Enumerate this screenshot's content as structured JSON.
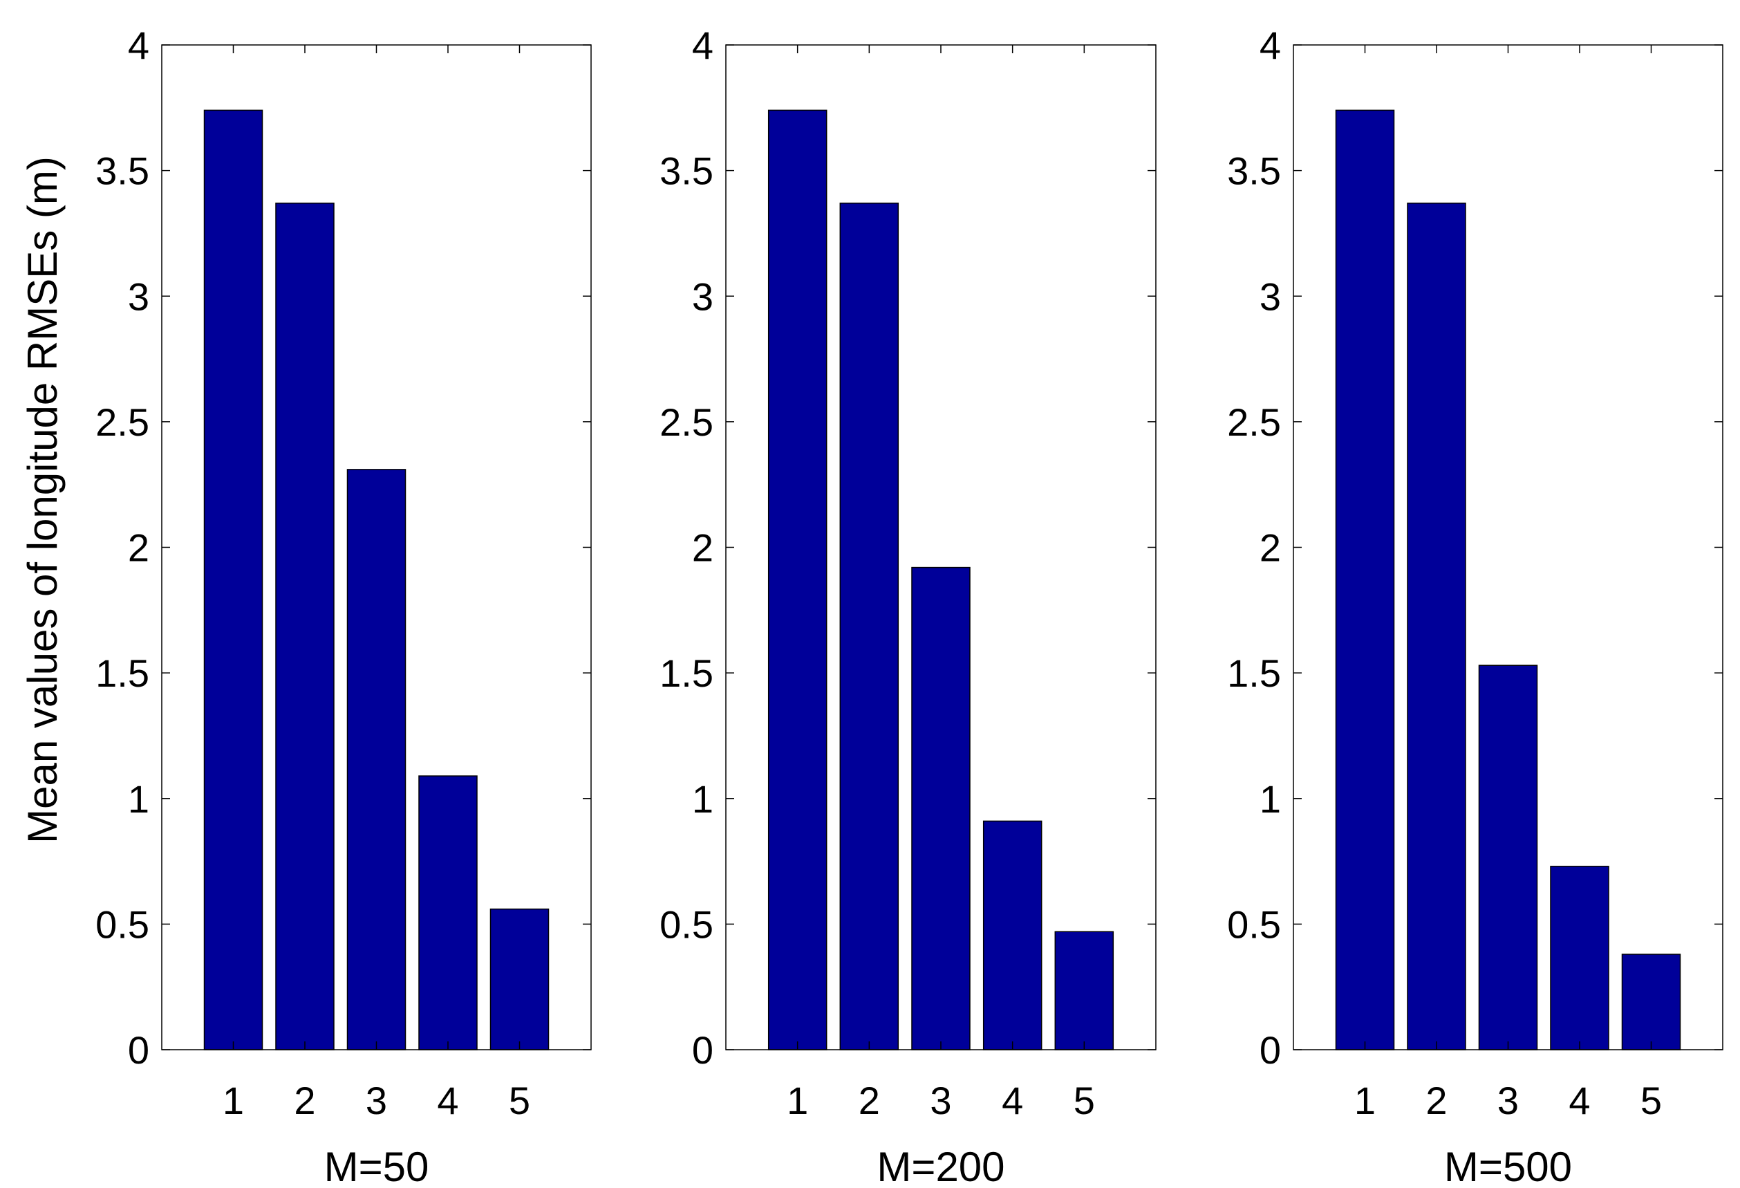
{
  "chart_data": {
    "type": "bar",
    "layout": "three side-by-side subplots sharing a y-axis label",
    "ylabel": "Mean values of longitude RMSEs (m)",
    "bar_color": "#000099",
    "panels": [
      {
        "xlabel": "M=50",
        "categories": [
          "1",
          "2",
          "3",
          "4",
          "5"
        ],
        "values": [
          3.74,
          3.37,
          2.31,
          1.09,
          0.56
        ],
        "ylim": [
          0,
          4
        ],
        "yticks": [
          0,
          0.5,
          1,
          1.5,
          2,
          2.5,
          3,
          3.5,
          4
        ],
        "ytick_labels": [
          "0",
          "0.5",
          "1",
          "1.5",
          "2",
          "2.5",
          "3",
          "3.5",
          "4"
        ]
      },
      {
        "xlabel": "M=200",
        "categories": [
          "1",
          "2",
          "3",
          "4",
          "5"
        ],
        "values": [
          3.74,
          3.37,
          1.92,
          0.91,
          0.47
        ],
        "ylim": [
          0,
          4
        ],
        "yticks": [
          0,
          0.5,
          1,
          1.5,
          2,
          2.5,
          3,
          3.5,
          4
        ],
        "ytick_labels": [
          "0",
          "0.5",
          "1",
          "1.5",
          "2",
          "2.5",
          "3",
          "3.5",
          "4"
        ]
      },
      {
        "xlabel": "M=500",
        "categories": [
          "1",
          "2",
          "3",
          "4",
          "5"
        ],
        "values": [
          3.74,
          3.37,
          1.53,
          0.73,
          0.38
        ],
        "ylim": [
          0,
          4
        ],
        "yticks": [
          0,
          0.5,
          1,
          1.5,
          2,
          2.5,
          3,
          3.5,
          4
        ],
        "ytick_labels": [
          "0",
          "0.5",
          "1",
          "1.5",
          "2",
          "2.5",
          "3",
          "3.5",
          "4"
        ]
      }
    ]
  }
}
